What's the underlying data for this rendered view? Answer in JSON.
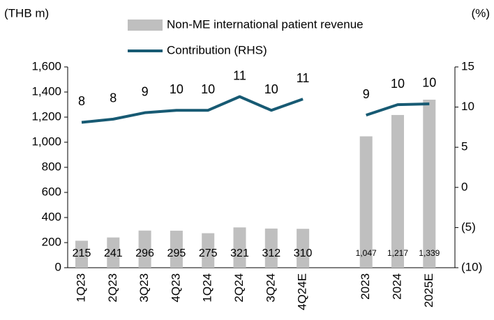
{
  "chart_data": {
    "type": "bar",
    "y_label": "(THB m)",
    "y2_label": "(%)",
    "categories": [
      "1Q23",
      "2Q23",
      "3Q23",
      "4Q23",
      "1Q24",
      "2Q24",
      "3Q24",
      "4Q24E",
      null,
      "2023",
      "2024",
      "2025E"
    ],
    "series": [
      {
        "name": "Non-ME international patient revenue",
        "type": "bar",
        "color": "#bfbfbf",
        "values": [
          215,
          241,
          296,
          295,
          275,
          321,
          312,
          310,
          null,
          1047,
          1217,
          1339
        ],
        "value_labels": [
          "215",
          "241",
          "296",
          "295",
          "275",
          "321",
          "312",
          "310",
          null,
          "1,047",
          "1,217",
          "1,339"
        ]
      },
      {
        "name": "Contribution (RHS)",
        "type": "line",
        "axis": "y2",
        "color": "#175a73",
        "values": [
          8.1,
          8.5,
          9.3,
          9.6,
          9.6,
          11.3,
          9.6,
          11.0,
          null,
          9.0,
          10.3,
          10.4
        ],
        "value_labels": [
          "8",
          "8",
          "9",
          "10",
          "10",
          "11",
          "10",
          "11",
          null,
          "9",
          "10",
          "10"
        ]
      }
    ],
    "ylim": [
      0,
      1600
    ],
    "yticks": [
      0,
      200,
      400,
      600,
      800,
      {
        "value": 1000,
        "label": "1,000"
      },
      {
        "value": 1200,
        "label": "1,200"
      },
      {
        "value": 1400,
        "label": "1,400"
      },
      {
        "value": 1600,
        "label": "1,600"
      }
    ],
    "y2lim": [
      -10,
      15
    ],
    "y2ticks": [
      {
        "value": -10,
        "label": "(10)"
      },
      {
        "value": -5,
        "label": "(5)"
      },
      0,
      5,
      10,
      15
    ],
    "legend": "top"
  }
}
